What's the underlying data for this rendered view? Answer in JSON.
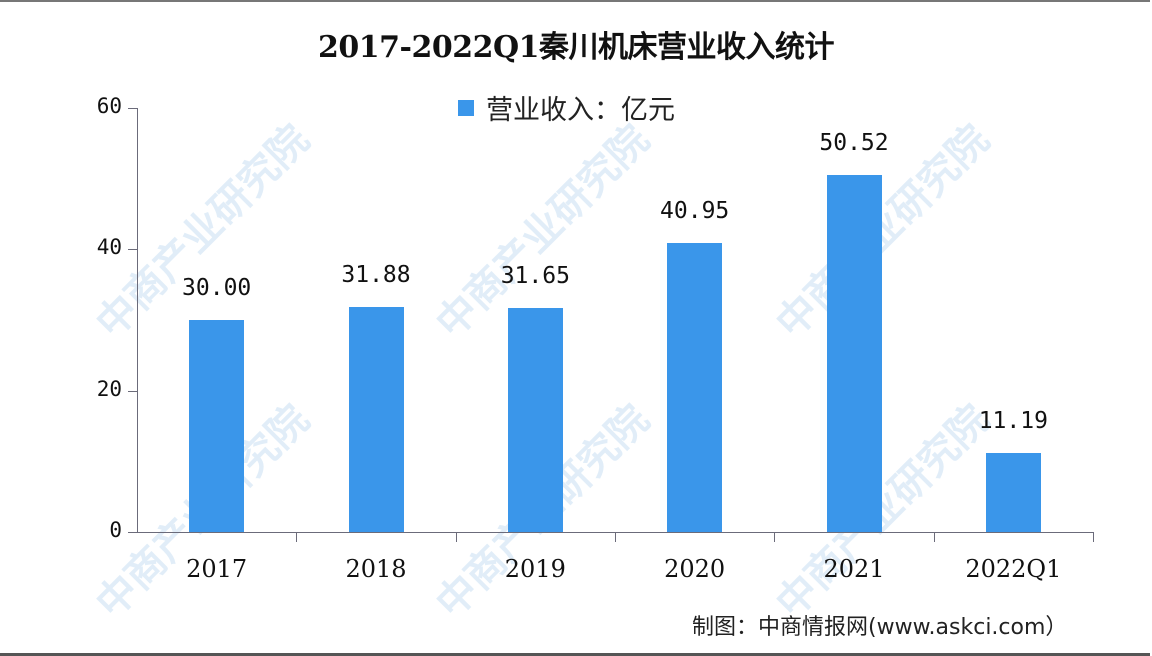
{
  "chart_data": {
    "type": "bar",
    "title": "2017-2022Q1秦川机床营业收入统计",
    "categories": [
      "2017",
      "2018",
      "2019",
      "2020",
      "2021",
      "2022Q1"
    ],
    "series": [
      {
        "name": "营业收入：亿元",
        "values": [
          30.0,
          31.88,
          31.65,
          40.95,
          50.52,
          11.19
        ],
        "color": "#3a96ea"
      }
    ],
    "value_labels": [
      "30.00",
      "31.88",
      "31.65",
      "40.95",
      "50.52",
      "11.19"
    ],
    "xlabel": "",
    "ylabel": "",
    "ylim": [
      0,
      60
    ],
    "yticks": [
      0,
      20,
      40,
      60
    ],
    "grid": false,
    "legend_position": "top-center"
  },
  "title": "2017-2022Q1秦川机床营业收入统计",
  "legend": {
    "label": "营业收入：亿元",
    "color": "#3a96ea"
  },
  "yticks": [
    "0",
    "20",
    "40",
    "60"
  ],
  "source": "制图：中商情报网(www.askci.com）",
  "watermark": "中商产业研究院"
}
